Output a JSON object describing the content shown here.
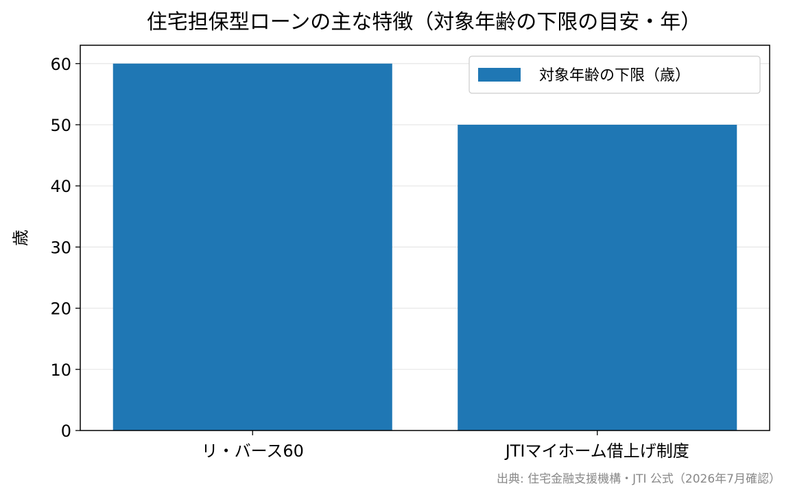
{
  "chart_data": {
    "type": "bar",
    "title": "住宅担保型ローンの主な特徴（対象年齢の下限の目安・年）",
    "categories": [
      "リ・バース60",
      "JTIマイホーム借上げ制度"
    ],
    "series": [
      {
        "name": "対象年齢の下限（歳）",
        "values": [
          60,
          50
        ],
        "color": "#1f77b4"
      }
    ],
    "xlabel": "",
    "ylabel": "歳",
    "ylim": [
      0,
      63
    ],
    "yticks": [
      0,
      10,
      20,
      30,
      40,
      50,
      60
    ],
    "grid": "y",
    "legend_position": "top-right",
    "source_note": "出典: 住宅金融支援機構・JTI 公式（2026年7月確認）"
  }
}
